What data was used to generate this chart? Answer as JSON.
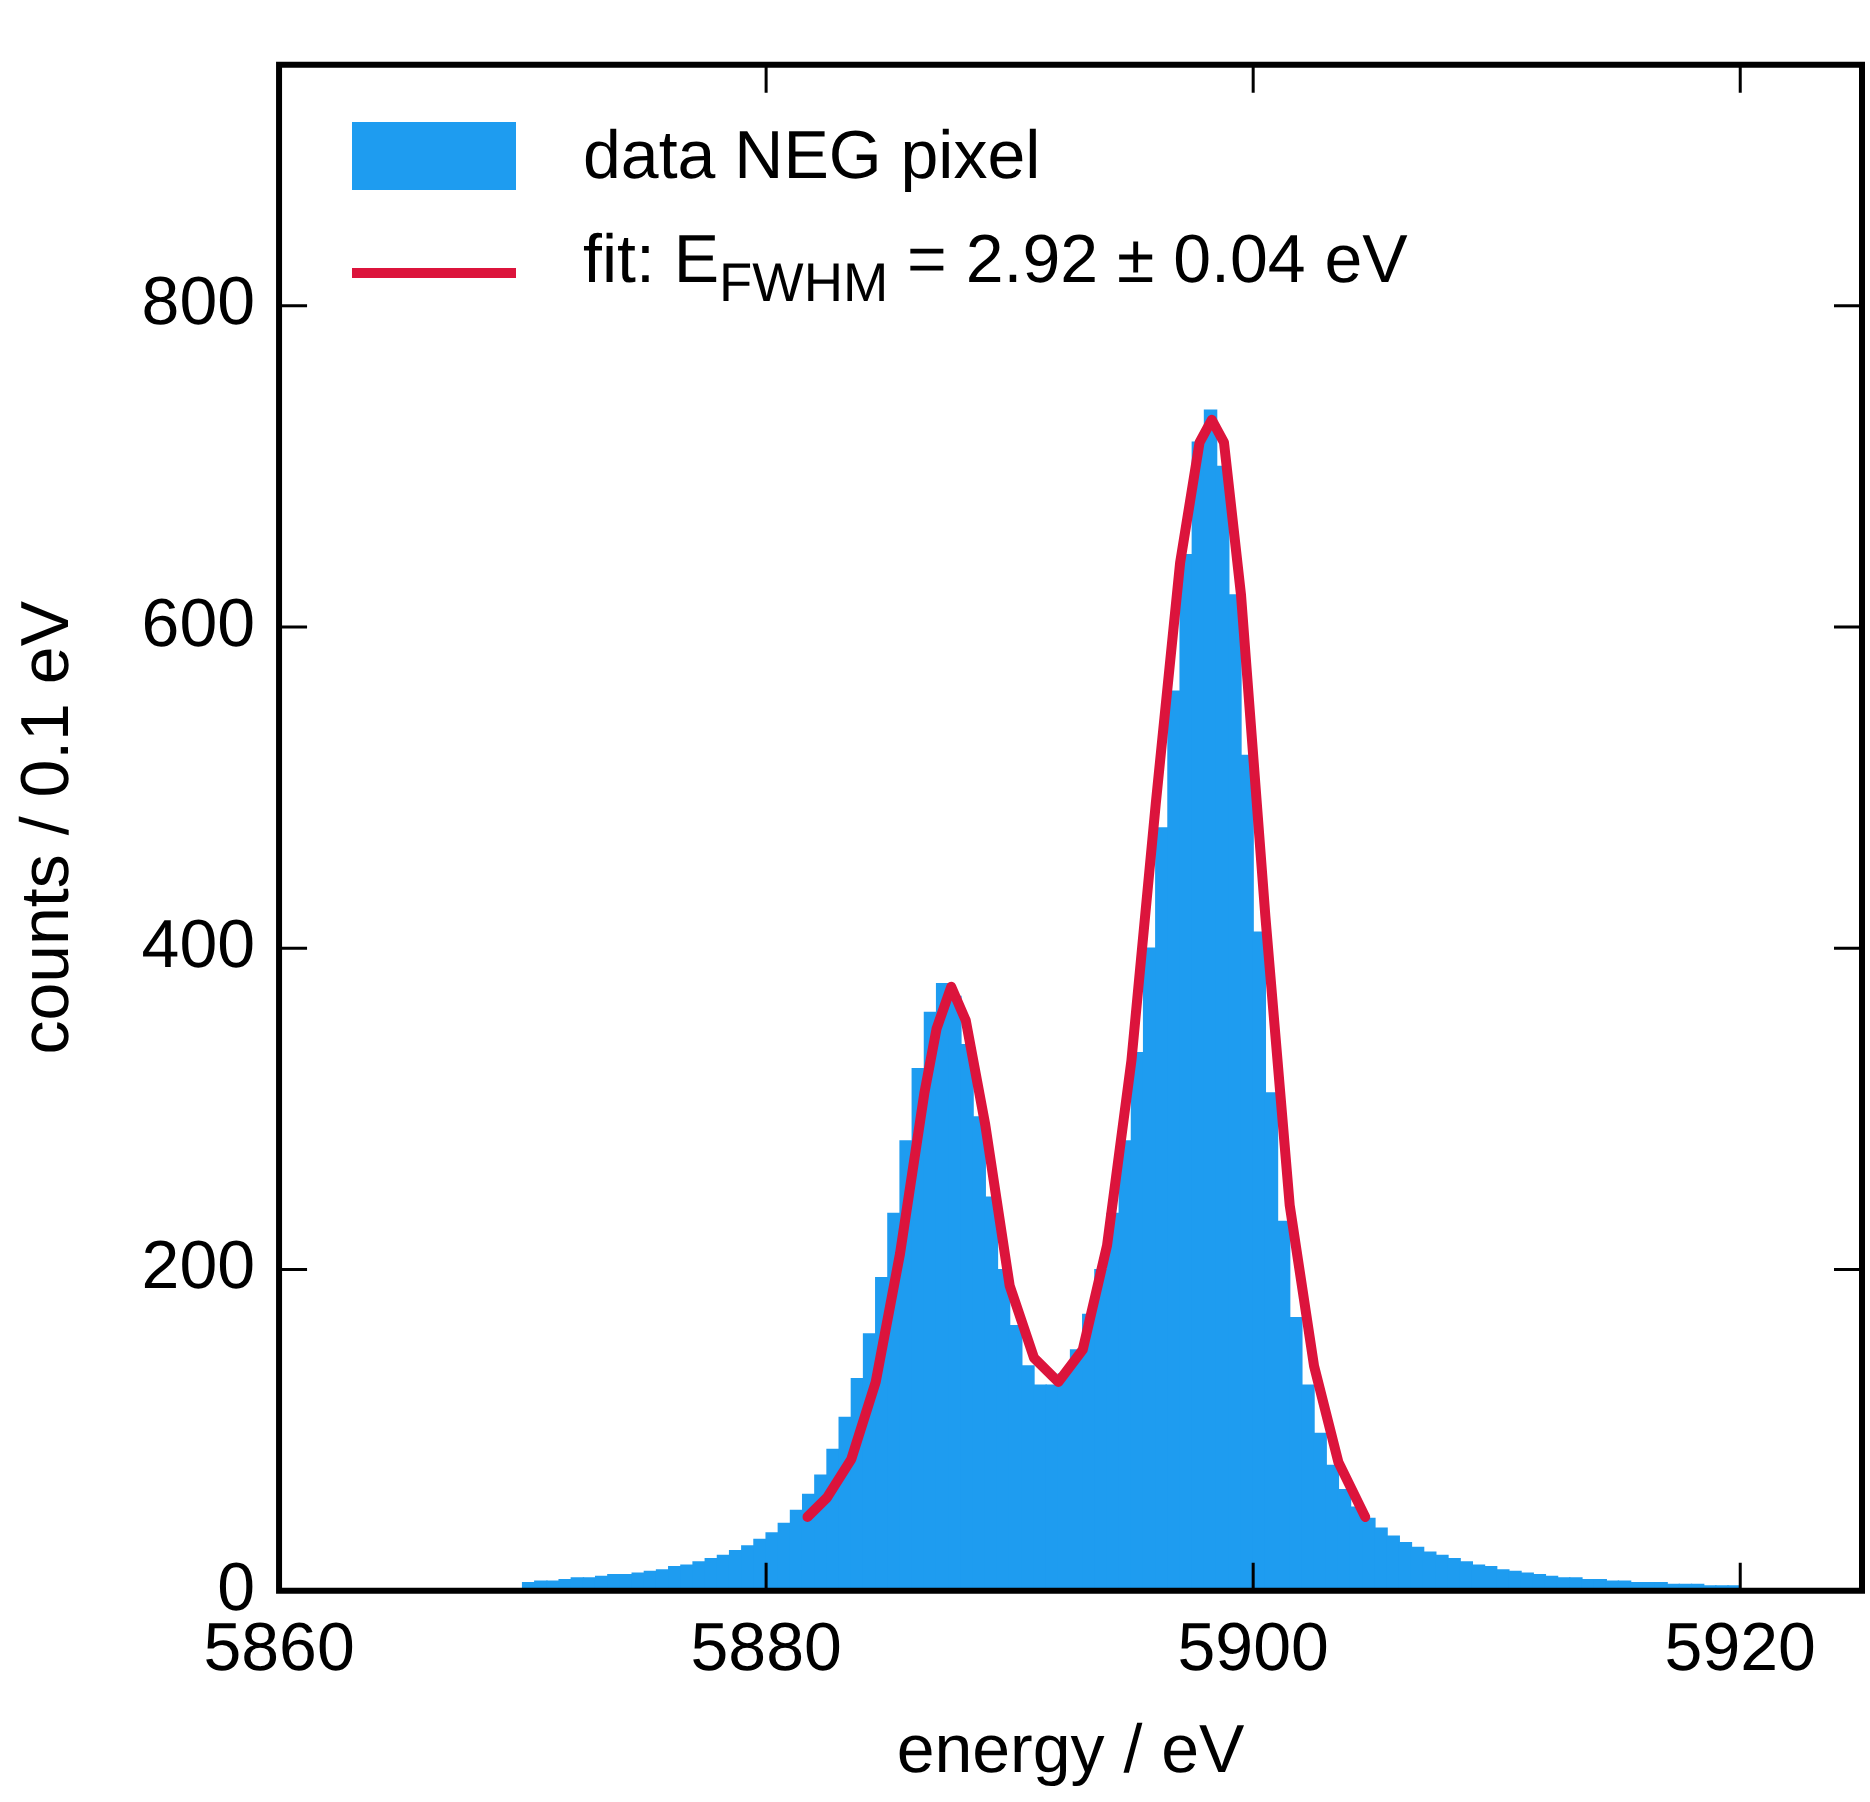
{
  "chart_data": {
    "type": "histogram",
    "xlabel": "energy / eV",
    "ylabel": "counts / 0.1 eV",
    "xlim": [
      5860,
      5925
    ],
    "xticks": [
      5860,
      5880,
      5900,
      5920
    ],
    "ylim": [
      0,
      950
    ],
    "yticks": [
      0,
      200,
      400,
      600,
      800
    ],
    "grid": false,
    "legend": "top left",
    "series": [
      {
        "name": "data NEG pixel",
        "color": "#1e9cf0",
        "bins": [
          5870,
          5870.5,
          5871,
          5871.5,
          5872,
          5872.5,
          5873,
          5873.5,
          5874,
          5874.5,
          5875,
          5875.5,
          5876,
          5876.5,
          5877,
          5877.5,
          5878,
          5878.5,
          5879,
          5879.5,
          5880,
          5880.5,
          5881,
          5881.5,
          5882,
          5882.5,
          5883,
          5883.5,
          5884,
          5884.5,
          5885,
          5885.5,
          5886,
          5886.5,
          5887,
          5887.5,
          5888,
          5888.5,
          5889,
          5889.5,
          5890,
          5890.5,
          5891,
          5891.5,
          5892,
          5892.5,
          5893,
          5893.5,
          5894,
          5894.5,
          5895,
          5895.5,
          5896,
          5896.5,
          5897,
          5897.5,
          5898,
          5898.5,
          5899,
          5899.5,
          5900,
          5900.5,
          5901,
          5901.5,
          5902,
          5902.5,
          5903,
          5903.5,
          5904,
          5904.5,
          5905,
          5905.5,
          5906,
          5906.5,
          5907,
          5907.5,
          5908,
          5908.5,
          5909,
          5909.5,
          5910,
          5910.5,
          5911,
          5911.5,
          5912,
          5912.5,
          5913,
          5913.5,
          5914,
          5914.5,
          5915,
          5915.5,
          5916,
          5916.5,
          5917,
          5917.5,
          5918,
          5918.5,
          5919,
          5919.5,
          5920
        ],
        "values": [
          5,
          6,
          6,
          7,
          8,
          8,
          9,
          10,
          10,
          11,
          12,
          13,
          15,
          16,
          18,
          20,
          22,
          25,
          28,
          32,
          36,
          42,
          50,
          60,
          72,
          88,
          108,
          132,
          160,
          195,
          235,
          280,
          325,
          360,
          378,
          370,
          340,
          295,
          245,
          200,
          165,
          140,
          128,
          128,
          135,
          150,
          172,
          200,
          235,
          280,
          335,
          400,
          475,
          560,
          645,
          715,
          735,
          700,
          620,
          520,
          410,
          310,
          230,
          170,
          128,
          98,
          78,
          63,
          52,
          45,
          39,
          34,
          30,
          27,
          24,
          22,
          20,
          18,
          16,
          15,
          13,
          12,
          11,
          10,
          9,
          8,
          8,
          7,
          7,
          6,
          6,
          5,
          5,
          5,
          4,
          4,
          4,
          3,
          3,
          3
        ]
      },
      {
        "type": "line",
        "name": "fit: E$_{FWHM}$ = 2.92 ± 0.04 eV",
        "color": "#dc143c",
        "marker": "none",
        "line_style": "solid",
        "x": [
          5881.7,
          5882.5,
          5883.5,
          5884.5,
          5885.5,
          5886.5,
          5887,
          5887.6,
          5888.2,
          5889,
          5890,
          5891,
          5892,
          5893,
          5894,
          5895,
          5896,
          5897,
          5897.8,
          5898.3,
          5898.8,
          5899.5,
          5900.5,
          5901.5,
          5902.5,
          5903.5,
          5904.6
        ],
        "values": [
          46,
          58,
          82,
          130,
          210,
          310,
          350,
          376,
          355,
          290,
          190,
          145,
          130,
          150,
          215,
          330,
          490,
          640,
          715,
          729,
          715,
          620,
          420,
          240,
          140,
          80,
          46
        ]
      }
    ]
  }
}
